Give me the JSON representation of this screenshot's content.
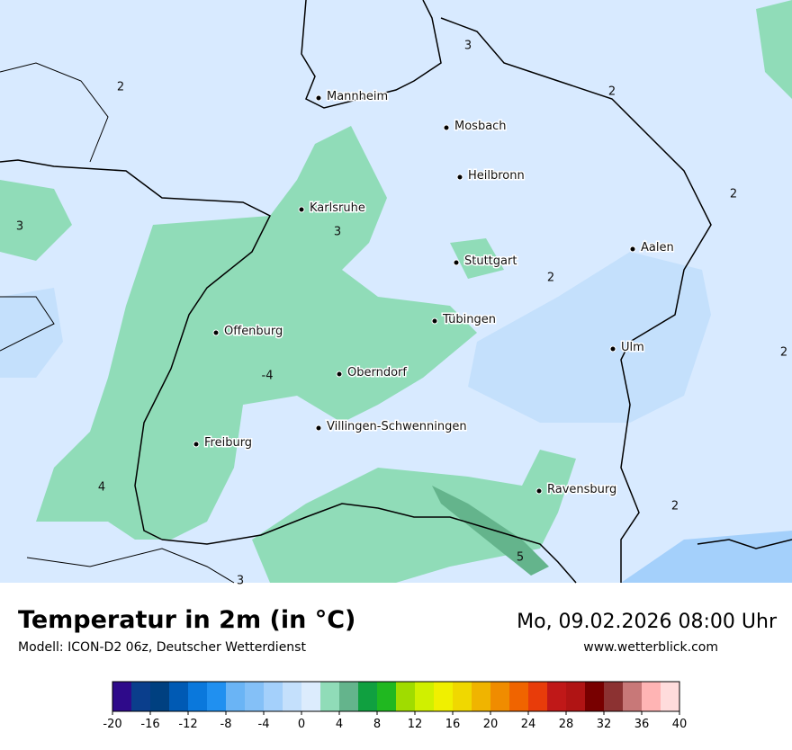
{
  "header": {
    "title": "Temperatur in 2m (in °C)",
    "model": "Modell: ICON-D2 06z, Deutscher Wetterdienst",
    "datetime": "Mo, 09.02.2026 08:00 Uhr",
    "website": "www.wetterblick.com"
  },
  "map": {
    "cities": [
      "Mannheim",
      "Mosbach",
      "Heilbronn",
      "Karlsruhe",
      "Aalen",
      "Stuttgart",
      "Tübingen",
      "Offenburg",
      "Ulm",
      "Oberndorf",
      "Villingen-Schwenningen",
      "Freiburg",
      "Ravensburg"
    ],
    "labels": [
      3,
      2,
      2,
      2,
      3,
      3,
      2,
      2,
      -4,
      4,
      2,
      5,
      3
    ]
  },
  "colorbar": {
    "lim": [
      -20,
      40
    ],
    "ticks": [
      -20,
      -16,
      -12,
      -8,
      -4,
      0,
      4,
      8,
      12,
      16,
      20,
      24,
      28,
      32,
      36,
      40
    ],
    "colors": [
      "#2e0a8a",
      "#0a3e8c",
      "#004080",
      "#005ab4",
      "#0a78dc",
      "#2090f0",
      "#6ab4f5",
      "#84c0f7",
      "#a4d0fb",
      "#c4e0fc",
      "#dcecfd",
      "#90dcb8",
      "#64b48c",
      "#10a040",
      "#20b820",
      "#a0dc00",
      "#d0f000",
      "#f0f000",
      "#f0d800",
      "#f0b400",
      "#f08c00",
      "#f06400",
      "#e83c0a",
      "#c01818",
      "#b01414",
      "#780000",
      "#8c3232",
      "#c87878",
      "#ffb4b4",
      "#ffdcdc"
    ]
  }
}
